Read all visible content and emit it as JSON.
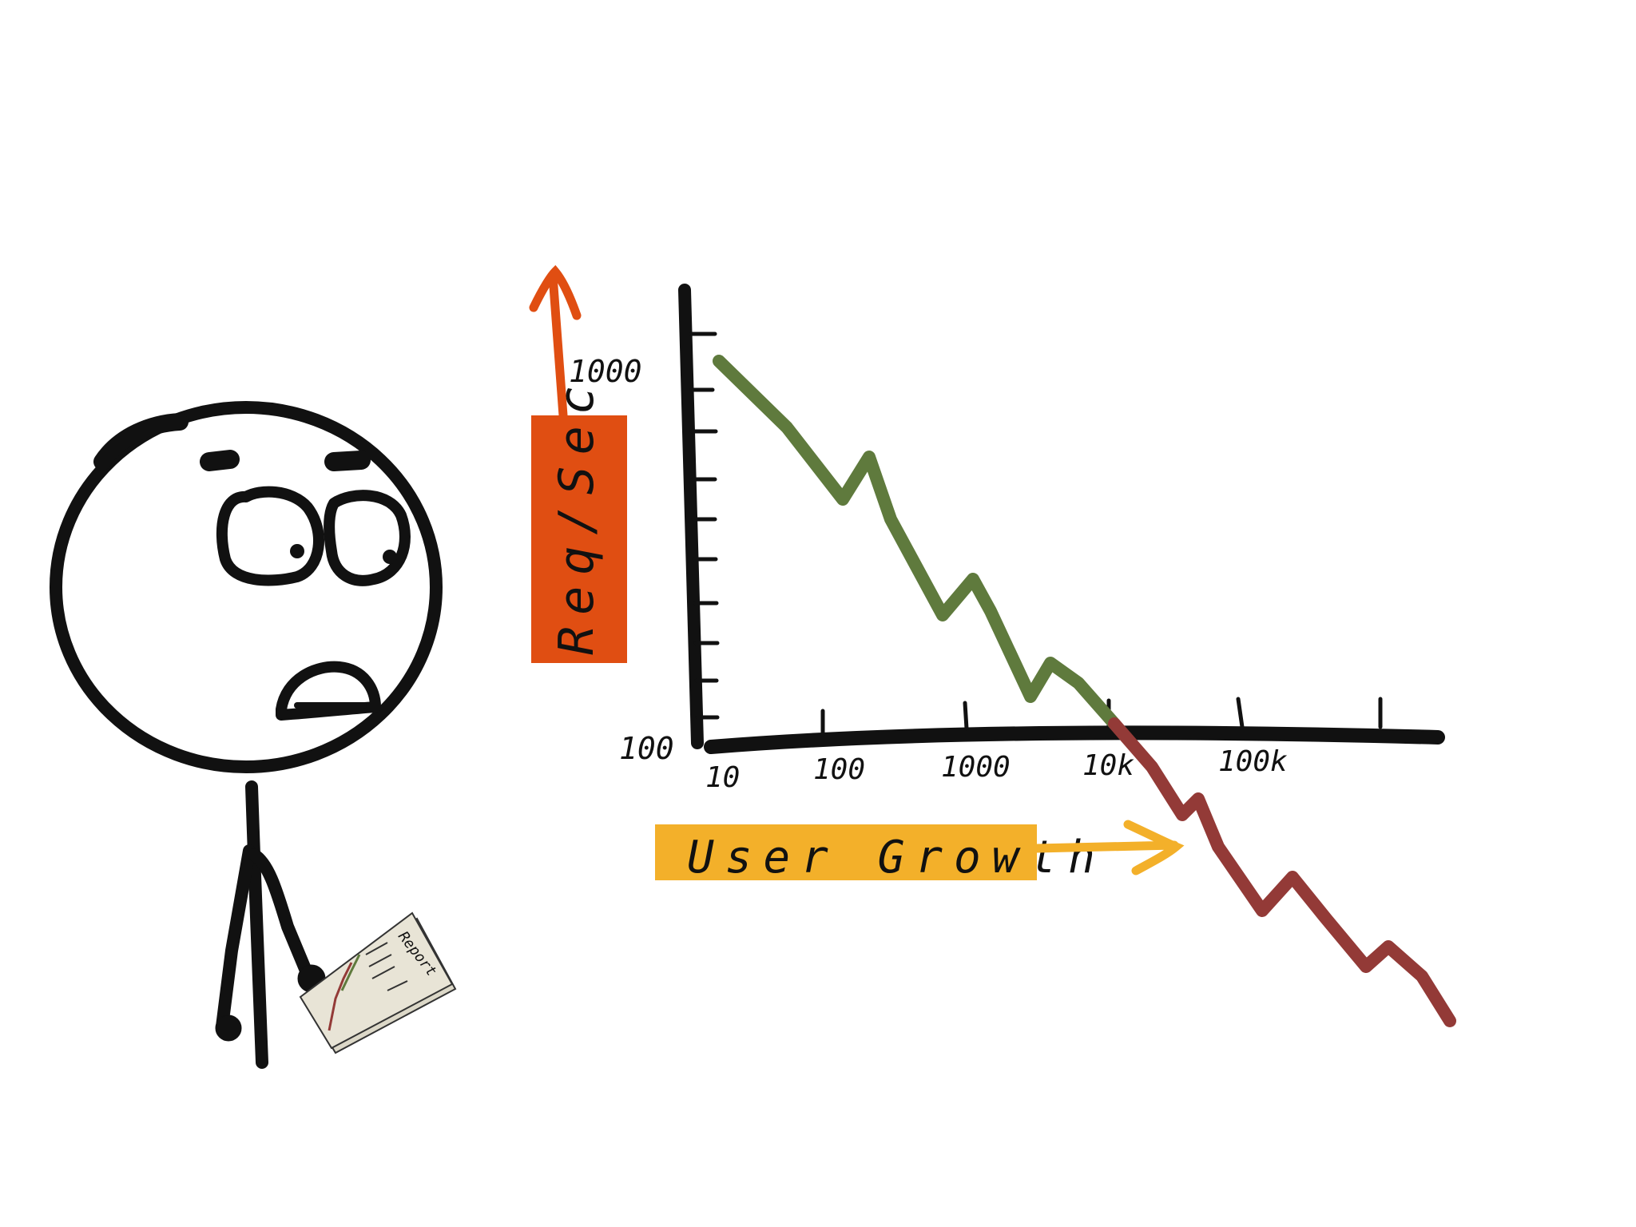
{
  "drawing": {
    "y_axis_label": "Req/Sec",
    "x_axis_label": "User Growth",
    "report_label": "Report",
    "y_ticks": [
      "1000",
      "100"
    ],
    "x_ticks": [
      "10",
      "100",
      "1000",
      "10k",
      "100k"
    ]
  },
  "colors": {
    "ink": "#111111",
    "y_label_fill": "#e04e12",
    "x_label_fill": "#f3b02a",
    "line_good": "#5f7a3d",
    "line_bad": "#933a37",
    "paper": "#e8e4d6"
  }
}
